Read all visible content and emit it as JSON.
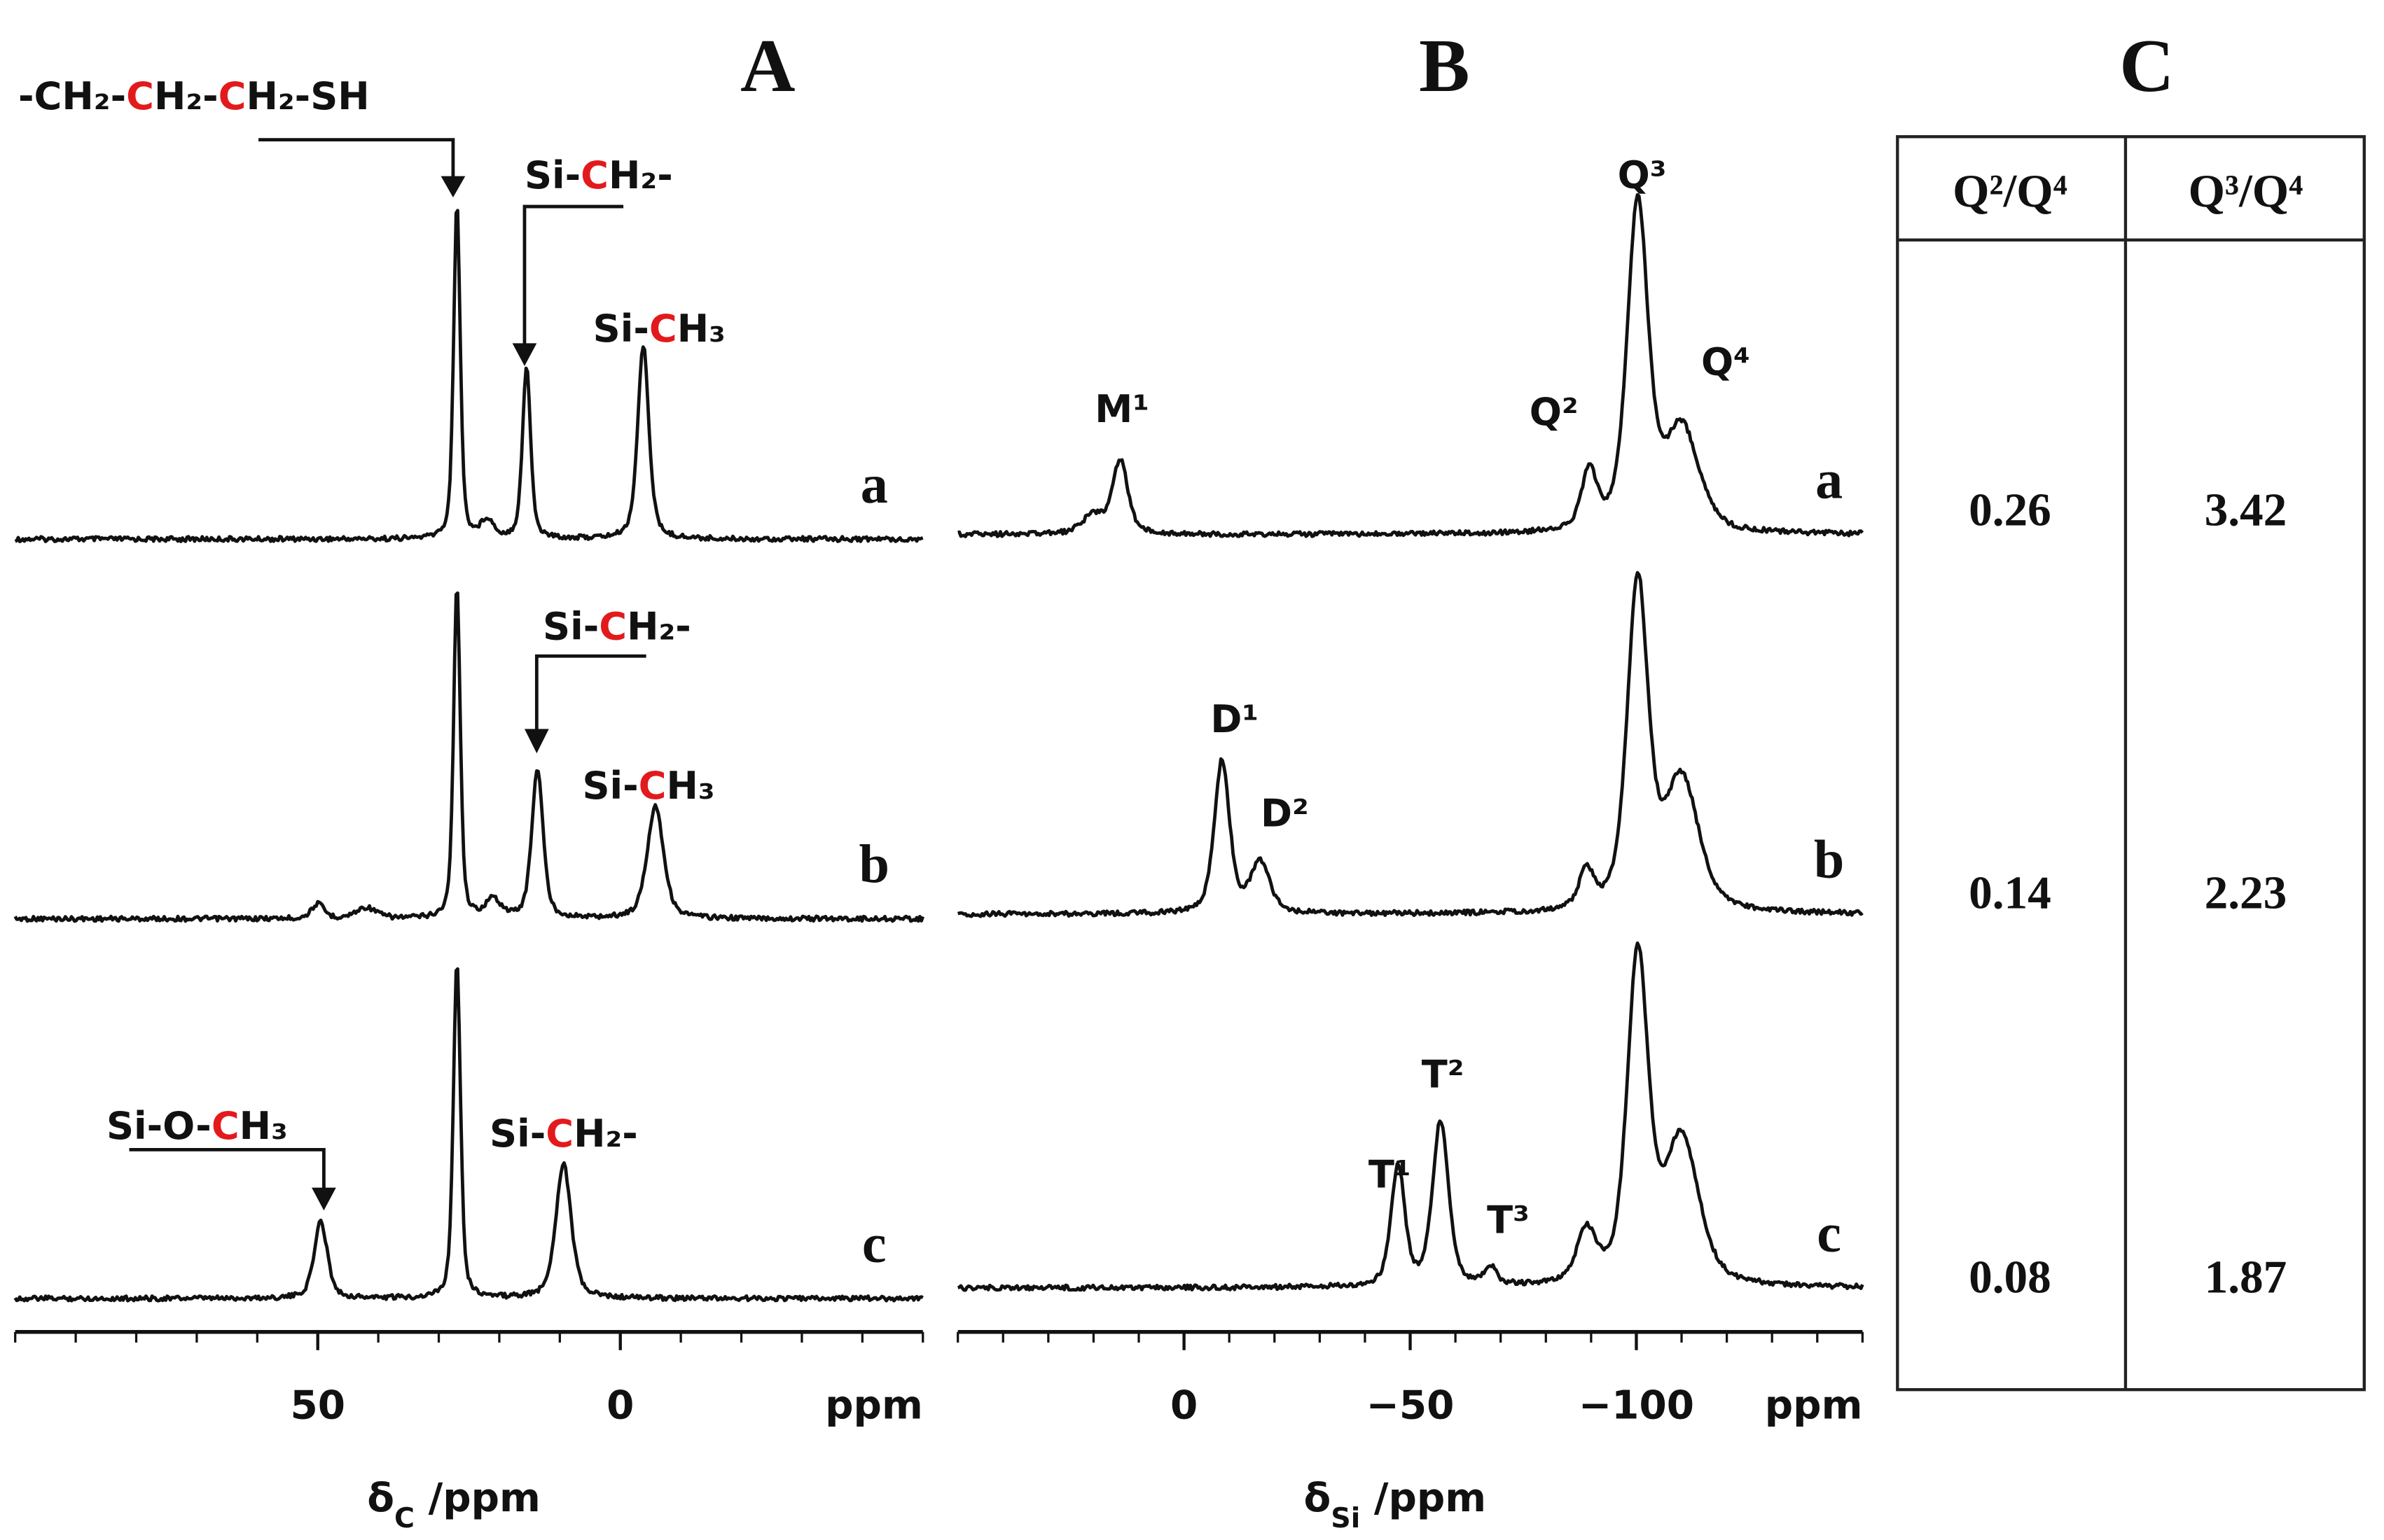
{
  "chart_data": [
    {
      "type": "spectrum",
      "title": "A",
      "xlabel": [
        {
          "text": "δ"
        },
        {
          "text": "C",
          "sub": true
        },
        {
          "text": " /ppm"
        }
      ],
      "xunit": "ppm",
      "xlim": [
        100,
        -50
      ],
      "xticks": [
        50,
        0
      ],
      "xminorticks": [
        100,
        90,
        80,
        70,
        60,
        40,
        30,
        20,
        10,
        -10,
        -20,
        -30,
        -40,
        -50
      ],
      "ylim": [
        0,
        100
      ],
      "color": "#111111",
      "series": [
        {
          "name": "a",
          "x": [
            27,
            22,
            15.5,
            -3.8
          ],
          "values": [
            92,
            5,
            47,
            53
          ],
          "widths": [
            1.3,
            2.5,
            1.6,
            2.2
          ]
        },
        {
          "name": "b",
          "x": [
            50,
            42,
            27,
            21,
            13.7,
            -5.8
          ],
          "values": [
            4,
            3,
            92,
            5,
            41,
            31
          ],
          "widths": [
            2.5,
            4,
            1.3,
            3,
            2.2,
            3.2
          ]
        },
        {
          "name": "c",
          "x": [
            49.5,
            27,
            9.4
          ],
          "values": [
            21,
            93,
            37
          ],
          "widths": [
            2.6,
            1.4,
            3
          ]
        }
      ],
      "annotations": [
        [
          {
            "text": "-CH₂-"
          },
          {
            "text": "C",
            "color": "#e31a1c"
          },
          {
            "text": "H₂-"
          },
          {
            "text": "C",
            "color": "#e31a1c"
          },
          {
            "text": "H₂-SH"
          }
        ],
        [
          {
            "text": "Si-"
          },
          {
            "text": "C",
            "color": "#e31a1c"
          },
          {
            "text": "H₂-"
          }
        ],
        [
          {
            "text": "Si-"
          },
          {
            "text": "C",
            "color": "#e31a1c"
          },
          {
            "text": "H₃"
          }
        ],
        [
          {
            "text": "Si-"
          },
          {
            "text": "C",
            "color": "#e31a1c"
          },
          {
            "text": "H₂-"
          }
        ],
        [
          {
            "text": "Si-"
          },
          {
            "text": "C",
            "color": "#e31a1c"
          },
          {
            "text": "H₃"
          }
        ],
        [
          {
            "text": "Si-O-"
          },
          {
            "text": "C",
            "color": "#e31a1c"
          },
          {
            "text": "H₃"
          }
        ],
        [
          {
            "text": "Si-"
          },
          {
            "text": "C",
            "color": "#e31a1c"
          },
          {
            "text": "H₂-"
          }
        ]
      ]
    },
    {
      "type": "spectrum",
      "title": "B",
      "xlabel": [
        {
          "text": "δ"
        },
        {
          "text": "Si",
          "sub": true
        },
        {
          "text": " /ppm"
        }
      ],
      "xunit": "ppm",
      "xlim": [
        50,
        -150
      ],
      "xticks": [
        0,
        {
          "value": -50,
          "label": "−50"
        },
        {
          "value": -100,
          "label": "−100"
        }
      ],
      "xminorticks": [
        50,
        40,
        30,
        20,
        10,
        -10,
        -20,
        -30,
        -40,
        -60,
        -70,
        -80,
        -90,
        -110,
        -120,
        -130,
        -140,
        -150
      ],
      "ylim": [
        0,
        100
      ],
      "color": "#111111",
      "series": [
        {
          "name": "a",
          "x": [
            20,
            14.1,
            -89.6,
            -100.3,
            -110
          ],
          "values": [
            5,
            20,
            16,
            90,
            28
          ],
          "widths": [
            6,
            4,
            4,
            5.5,
            9
          ]
        },
        {
          "name": "b",
          "x": [
            -8.4,
            -16.8,
            -89,
            -100.3,
            -110
          ],
          "values": [
            42,
            14,
            10,
            90,
            36
          ],
          "widths": [
            4,
            5,
            4,
            5.5,
            9
          ]
        },
        {
          "name": "c",
          "x": [
            -47.3,
            -56.7,
            -67.8,
            -89,
            -100.3,
            -110
          ],
          "values": [
            33,
            45,
            5,
            14,
            90,
            40
          ],
          "widths": [
            3.6,
            4.2,
            3,
            5,
            5.5,
            9
          ]
        }
      ],
      "annotations": [
        [
          {
            "text": "M¹"
          }
        ],
        [
          {
            "text": "Q³"
          }
        ],
        [
          {
            "text": "Q²"
          }
        ],
        [
          {
            "text": "Q⁴"
          }
        ],
        [
          {
            "text": "D¹"
          }
        ],
        [
          {
            "text": "D²"
          }
        ],
        [
          {
            "text": "T¹"
          }
        ],
        [
          {
            "text": "T²"
          }
        ],
        [
          {
            "text": "T³"
          }
        ]
      ]
    }
  ],
  "table": {
    "title": "C",
    "headers": [
      "Q²/Q⁴",
      "Q³/Q⁴"
    ],
    "rows": [
      [
        0.26,
        3.42
      ],
      [
        0.14,
        2.23
      ],
      [
        0.08,
        1.87
      ]
    ]
  }
}
